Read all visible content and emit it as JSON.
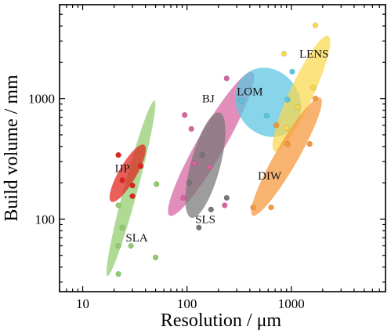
{
  "chart_data": {
    "type": "scatter",
    "title": "",
    "xlabel": "Resolution / μm",
    "ylabel": "Build volume / mm",
    "x_scale": "log",
    "y_scale": "log",
    "xlim": [
      6,
      8000
    ],
    "ylim": [
      25,
      6000
    ],
    "x_ticks": [
      10,
      100,
      1000
    ],
    "x_tick_labels": [
      "10",
      "100",
      "1000"
    ],
    "y_ticks": [
      100,
      1000
    ],
    "y_tick_labels": [
      "100",
      "1000"
    ],
    "grid": false,
    "legend": "none",
    "series": [
      {
        "name": "SLA",
        "color": "#8fcc6e",
        "ellipse": {
          "center": [
            29,
            180
          ],
          "x_range": [
            17,
            50
          ],
          "y_range": [
            35,
            1000
          ],
          "tilt_deg": -75
        },
        "points": [
          [
            22,
            35
          ],
          [
            22,
            60
          ],
          [
            29,
            60
          ],
          [
            50,
            48
          ],
          [
            24,
            85
          ],
          [
            51,
            195
          ],
          [
            22,
            130
          ]
        ]
      },
      {
        "name": "IJP",
        "color": "#e0231c",
        "ellipse": {
          "center": [
            27,
            240
          ],
          "x_range": [
            18,
            40
          ],
          "y_range": [
            140,
            420
          ],
          "tilt_deg": -60
        },
        "points": [
          [
            22,
            340
          ],
          [
            36,
            275
          ],
          [
            24,
            210
          ],
          [
            30,
            190
          ],
          [
            30,
            155
          ]
        ]
      },
      {
        "name": "BJ",
        "color": "#d5649f",
        "ellipse": {
          "center": [
            170,
            420
          ],
          "x_range": [
            90,
            300
          ],
          "y_range": [
            120,
            1700
          ],
          "tilt_deg": -60
        },
        "points": [
          [
            240,
            1470
          ],
          [
            95,
            730
          ],
          [
            92,
            150
          ],
          [
            118,
            290
          ],
          [
            165,
            270
          ],
          [
            110,
            560
          ],
          [
            230,
            130
          ]
        ]
      },
      {
        "name": "SLS",
        "color": "#777777",
        "ellipse": {
          "center": [
            150,
            280
          ],
          "x_range": [
            95,
            230
          ],
          "y_range": [
            80,
            600
          ],
          "tilt_deg": -75
        },
        "points": [
          [
            130,
            85
          ],
          [
            240,
            150
          ],
          [
            140,
            340
          ],
          [
            105,
            200
          ],
          [
            170,
            120
          ]
        ]
      },
      {
        "name": "LOM",
        "color": "#5ac5e0",
        "ellipse": {
          "center": [
            600,
            930
          ],
          "x_range": [
            280,
            1200
          ],
          "y_range": [
            480,
            1800
          ],
          "tilt_deg": -35
        },
        "points": [
          [
            1020,
            1670
          ],
          [
            920,
            980
          ],
          [
            330,
            960
          ],
          [
            580,
            720
          ]
        ]
      },
      {
        "name": "LENS",
        "color": "#f9d84e",
        "ellipse": {
          "center": [
            1250,
            1100
          ],
          "x_range": [
            750,
            2100
          ],
          "y_range": [
            480,
            4300
          ],
          "tilt_deg": -65
        },
        "points": [
          [
            1700,
            4050
          ],
          [
            850,
            2350
          ],
          [
            900,
            570
          ],
          [
            1620,
            1230
          ],
          [
            1150,
            850
          ]
        ]
      },
      {
        "name": "DIW",
        "color": "#f7953a",
        "ellipse": {
          "center": [
            900,
            330
          ],
          "x_range": [
            420,
            2000
          ],
          "y_range": [
            115,
            1100
          ],
          "tilt_deg": -60
        },
        "points": [
          [
            430,
            125
          ],
          [
            640,
            125
          ],
          [
            920,
            420
          ],
          [
            1500,
            420
          ],
          [
            720,
            600
          ],
          [
            1700,
            1000
          ]
        ]
      }
    ],
    "annotations": [
      "LENS",
      "LOM",
      "BJ",
      "IJP",
      "DIW",
      "SLA",
      "SLS"
    ]
  }
}
